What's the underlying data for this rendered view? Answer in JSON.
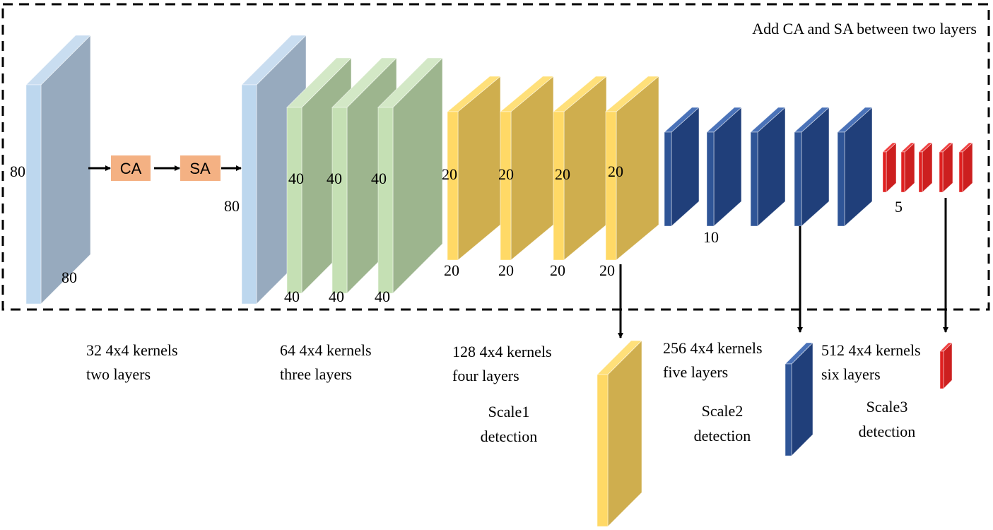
{
  "title": "Add CA and SA between two layers",
  "attention": {
    "ca_label": "CA",
    "sa_label": "SA",
    "box_color": "#f4b183"
  },
  "colors": {
    "stage1": {
      "front": "#bdd7ee",
      "side": "#97aabe",
      "top": "#c9ddf0"
    },
    "stage2": {
      "front": "#c5e0b4",
      "side": "#9db58e",
      "top": "#d3e8c6"
    },
    "stage3": {
      "front": "#ffd966",
      "side": "#cfae4e",
      "top": "#ffe07a"
    },
    "stage4": {
      "front": "#2f5597",
      "side": "#203f7a",
      "top": "#4a72b8"
    },
    "stage5": {
      "front": "#e02020",
      "side": "#cc1f1f",
      "top": "#f04040"
    }
  },
  "dims": {
    "input_h": "80",
    "input_w": "80",
    "attn_out": "80",
    "stage2": [
      "40",
      "40",
      "40",
      "40",
      "40",
      "40"
    ],
    "stage3": [
      "20",
      "20",
      "20",
      "20",
      "20",
      "20",
      "20",
      "20"
    ],
    "stage4": "10",
    "stage5": "5"
  },
  "stages": [
    {
      "line1": "32 4x4 kernels",
      "line2": "two layers"
    },
    {
      "line1": "64 4x4 kernels",
      "line2": "three layers"
    },
    {
      "line1": "128 4x4 kernels",
      "line2": "four layers"
    },
    {
      "line1": "256 4x4 kernels",
      "line2": "five layers"
    },
    {
      "line1": "512 4x4 kernels",
      "line2": "six layers"
    }
  ],
  "detections": [
    {
      "line1": "Scale1",
      "line2": "detection"
    },
    {
      "line1": "Scale2",
      "line2": "detection"
    },
    {
      "line1": "Scale3",
      "line2": "detection"
    }
  ]
}
